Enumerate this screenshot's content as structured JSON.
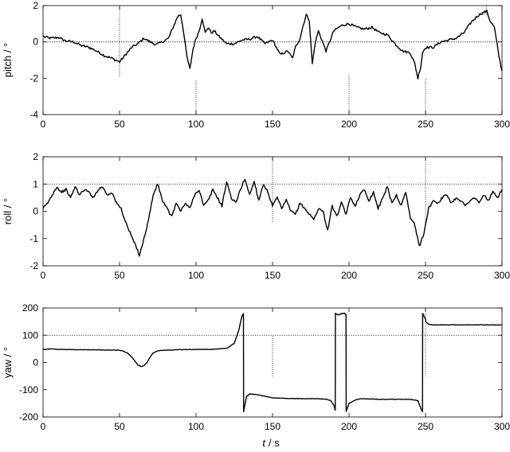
{
  "chart_data": [
    {
      "type": "line",
      "title": "",
      "xlabel": "",
      "ylabel": "pitch / °",
      "xlim": [
        0,
        300
      ],
      "ylim": [
        -4,
        2
      ],
      "xticks": [
        0,
        50,
        100,
        150,
        200,
        250,
        300
      ],
      "yticks": [
        -4,
        -2,
        0,
        2
      ],
      "grid": false,
      "reference_lines": [
        {
          "axis": "y",
          "value": 0
        }
      ],
      "markers": [
        {
          "x": 50,
          "from": -1.9,
          "to": 2
        },
        {
          "x": 100,
          "from": -4,
          "to": -2.1
        },
        {
          "x": 200,
          "from": -4,
          "to": -1.8
        },
        {
          "x": 250,
          "from": -4,
          "to": -2.0
        },
        {
          "x": 290,
          "from": 1.5,
          "to": 2
        }
      ],
      "series": [
        {
          "x": [
            0,
            5,
            10,
            15,
            20,
            25,
            30,
            35,
            40,
            45,
            50,
            52,
            55,
            58,
            62,
            66,
            70,
            74,
            78,
            82,
            85,
            88,
            90,
            92,
            94,
            96,
            98,
            100,
            102,
            104,
            106,
            108,
            110,
            112,
            115,
            120,
            125,
            130,
            135,
            140,
            145,
            150,
            155,
            160,
            163,
            165,
            168,
            170,
            172,
            174,
            176,
            178,
            180,
            185,
            190,
            195,
            200,
            205,
            210,
            215,
            220,
            225,
            230,
            235,
            240,
            243,
            245,
            247,
            248,
            250,
            255,
            260,
            265,
            270,
            275,
            280,
            285,
            290,
            292,
            295,
            298,
            300
          ],
          "values": [
            0.3,
            0.2,
            0.25,
            0.05,
            0.0,
            -0.2,
            -0.3,
            -0.5,
            -0.75,
            -0.9,
            -1.1,
            -0.9,
            -0.6,
            -0.3,
            -0.1,
            0.2,
            0.0,
            -0.15,
            0.0,
            0.2,
            0.8,
            1.4,
            1.5,
            0.5,
            -0.8,
            -1.5,
            -0.4,
            0.2,
            0.6,
            1.3,
            0.5,
            0.8,
            0.5,
            0.6,
            0.3,
            -0.1,
            -0.1,
            0.1,
            0.15,
            0.3,
            -0.1,
            0.1,
            -0.7,
            -0.5,
            -0.9,
            -0.3,
            0.2,
            0.9,
            1.5,
            1.2,
            -1.2,
            0.0,
            0.6,
            -0.5,
            0.6,
            0.9,
            1.0,
            0.8,
            0.7,
            0.8,
            0.5,
            0.4,
            -0.1,
            -0.5,
            -0.6,
            -1.2,
            -2.0,
            -1.3,
            -0.6,
            -0.3,
            -0.3,
            0.0,
            0.1,
            0.2,
            0.5,
            1.1,
            1.5,
            1.7,
            1.2,
            0.8,
            -0.8,
            -1.6
          ]
        }
      ]
    },
    {
      "type": "line",
      "title": "",
      "xlabel": "",
      "ylabel": "roll / °",
      "xlim": [
        0,
        300
      ],
      "ylim": [
        -2,
        2
      ],
      "xticks": [
        0,
        50,
        100,
        150,
        200,
        250,
        300
      ],
      "yticks": [
        -2,
        -1,
        0,
        1,
        2
      ],
      "grid": false,
      "reference_lines": [
        {
          "axis": "y",
          "value": 1
        }
      ],
      "markers": [
        {
          "x": 150,
          "from": -0.4,
          "to": 2
        },
        {
          "x": 250,
          "from": -0.5,
          "to": 2
        }
      ],
      "series": [
        {
          "x": [
            0,
            3,
            6,
            9,
            12,
            15,
            18,
            21,
            24,
            27,
            30,
            33,
            36,
            39,
            42,
            45,
            48,
            51,
            54,
            57,
            60,
            63,
            66,
            69,
            72,
            75,
            78,
            81,
            84,
            87,
            90,
            93,
            96,
            99,
            102,
            105,
            108,
            111,
            114,
            117,
            120,
            123,
            126,
            129,
            132,
            135,
            138,
            141,
            144,
            147,
            150,
            153,
            156,
            159,
            162,
            165,
            168,
            171,
            174,
            177,
            180,
            183,
            186,
            189,
            192,
            195,
            198,
            201,
            204,
            207,
            210,
            213,
            216,
            219,
            222,
            225,
            228,
            231,
            234,
            237,
            240,
            243,
            246,
            249,
            252,
            255,
            258,
            261,
            264,
            267,
            270,
            273,
            276,
            279,
            282,
            285,
            288,
            291,
            294,
            297,
            300
          ],
          "values": [
            0.1,
            0.3,
            0.6,
            0.9,
            0.7,
            0.8,
            0.5,
            0.9,
            0.6,
            0.8,
            0.7,
            0.5,
            0.8,
            0.9,
            0.6,
            0.7,
            0.3,
            0.1,
            -0.4,
            -0.8,
            -1.2,
            -1.6,
            -1.0,
            -0.3,
            0.6,
            1.0,
            0.4,
            0.1,
            -0.2,
            0.3,
            0.0,
            0.3,
            0.1,
            0.6,
            0.8,
            0.2,
            0.4,
            0.8,
            0.5,
            0.2,
            1.1,
            0.5,
            0.3,
            0.8,
            1.2,
            0.6,
            1.1,
            0.4,
            1.0,
            0.7,
            0.2,
            0.5,
            0.1,
            0.4,
            0.0,
            -0.1,
            0.3,
            0.1,
            -0.1,
            -0.3,
            0.1,
            0.0,
            -0.7,
            0.2,
            -0.2,
            0.3,
            -0.1,
            0.5,
            0.2,
            0.6,
            0.8,
            0.4,
            0.7,
            0.1,
            0.5,
            0.9,
            0.3,
            0.6,
            0.2,
            0.7,
            -0.2,
            -0.5,
            -1.3,
            -0.8,
            0.1,
            0.4,
            0.3,
            0.5,
            0.6,
            0.3,
            0.5,
            0.4,
            0.2,
            0.4,
            0.5,
            0.3,
            0.6,
            0.4,
            0.7,
            0.5,
            0.8
          ]
        }
      ]
    },
    {
      "type": "line",
      "title": "",
      "xlabel": "t / s",
      "ylabel": "yaw / °",
      "xlim": [
        0,
        300
      ],
      "ylim": [
        -200,
        200
      ],
      "xticks": [
        0,
        50,
        100,
        150,
        200,
        250,
        300
      ],
      "yticks": [
        -200,
        -100,
        0,
        100,
        200
      ],
      "grid": false,
      "reference_lines": [
        {
          "axis": "y",
          "value": 100
        }
      ],
      "markers": [
        {
          "x": 150,
          "from": -50,
          "to": 100
        },
        {
          "x": 250,
          "from": -50,
          "to": 200
        }
      ],
      "series": [
        {
          "x": [
            0,
            5,
            10,
            20,
            30,
            40,
            50,
            52,
            55,
            58,
            60,
            62,
            64,
            66,
            68,
            70,
            72,
            75,
            80,
            90,
            100,
            110,
            120,
            125,
            128,
            130,
            131,
            131.1,
            133,
            135,
            140,
            150,
            160,
            170,
            180,
            185,
            188,
            190,
            191,
            191.1,
            193,
            195,
            195.1,
            197,
            198,
            198.1,
            200,
            205,
            210,
            220,
            230,
            240,
            245,
            247,
            248,
            248.1,
            249,
            250,
            250.1,
            252,
            255,
            260,
            270,
            280,
            290,
            300
          ],
          "values": [
            48,
            50,
            48,
            47,
            47,
            46,
            45,
            42,
            35,
            20,
            5,
            -10,
            -15,
            -12,
            0,
            20,
            35,
            43,
            45,
            47,
            48,
            48,
            52,
            70,
            120,
            170,
            180,
            -180,
            -125,
            -115,
            -118,
            -130,
            -132,
            -133,
            -133,
            -135,
            -140,
            -155,
            -175,
            180,
            175,
            178,
            180,
            180,
            175,
            -180,
            -150,
            -135,
            -133,
            -135,
            -135,
            -135,
            -140,
            -170,
            -180,
            180,
            170,
            160,
            150,
            140,
            138,
            138,
            138,
            138,
            138,
            138
          ]
        }
      ]
    }
  ],
  "shared_axis": {
    "xlabel_var": "t",
    "xlabel_sep": " / ",
    "xlabel_unit": "s"
  }
}
